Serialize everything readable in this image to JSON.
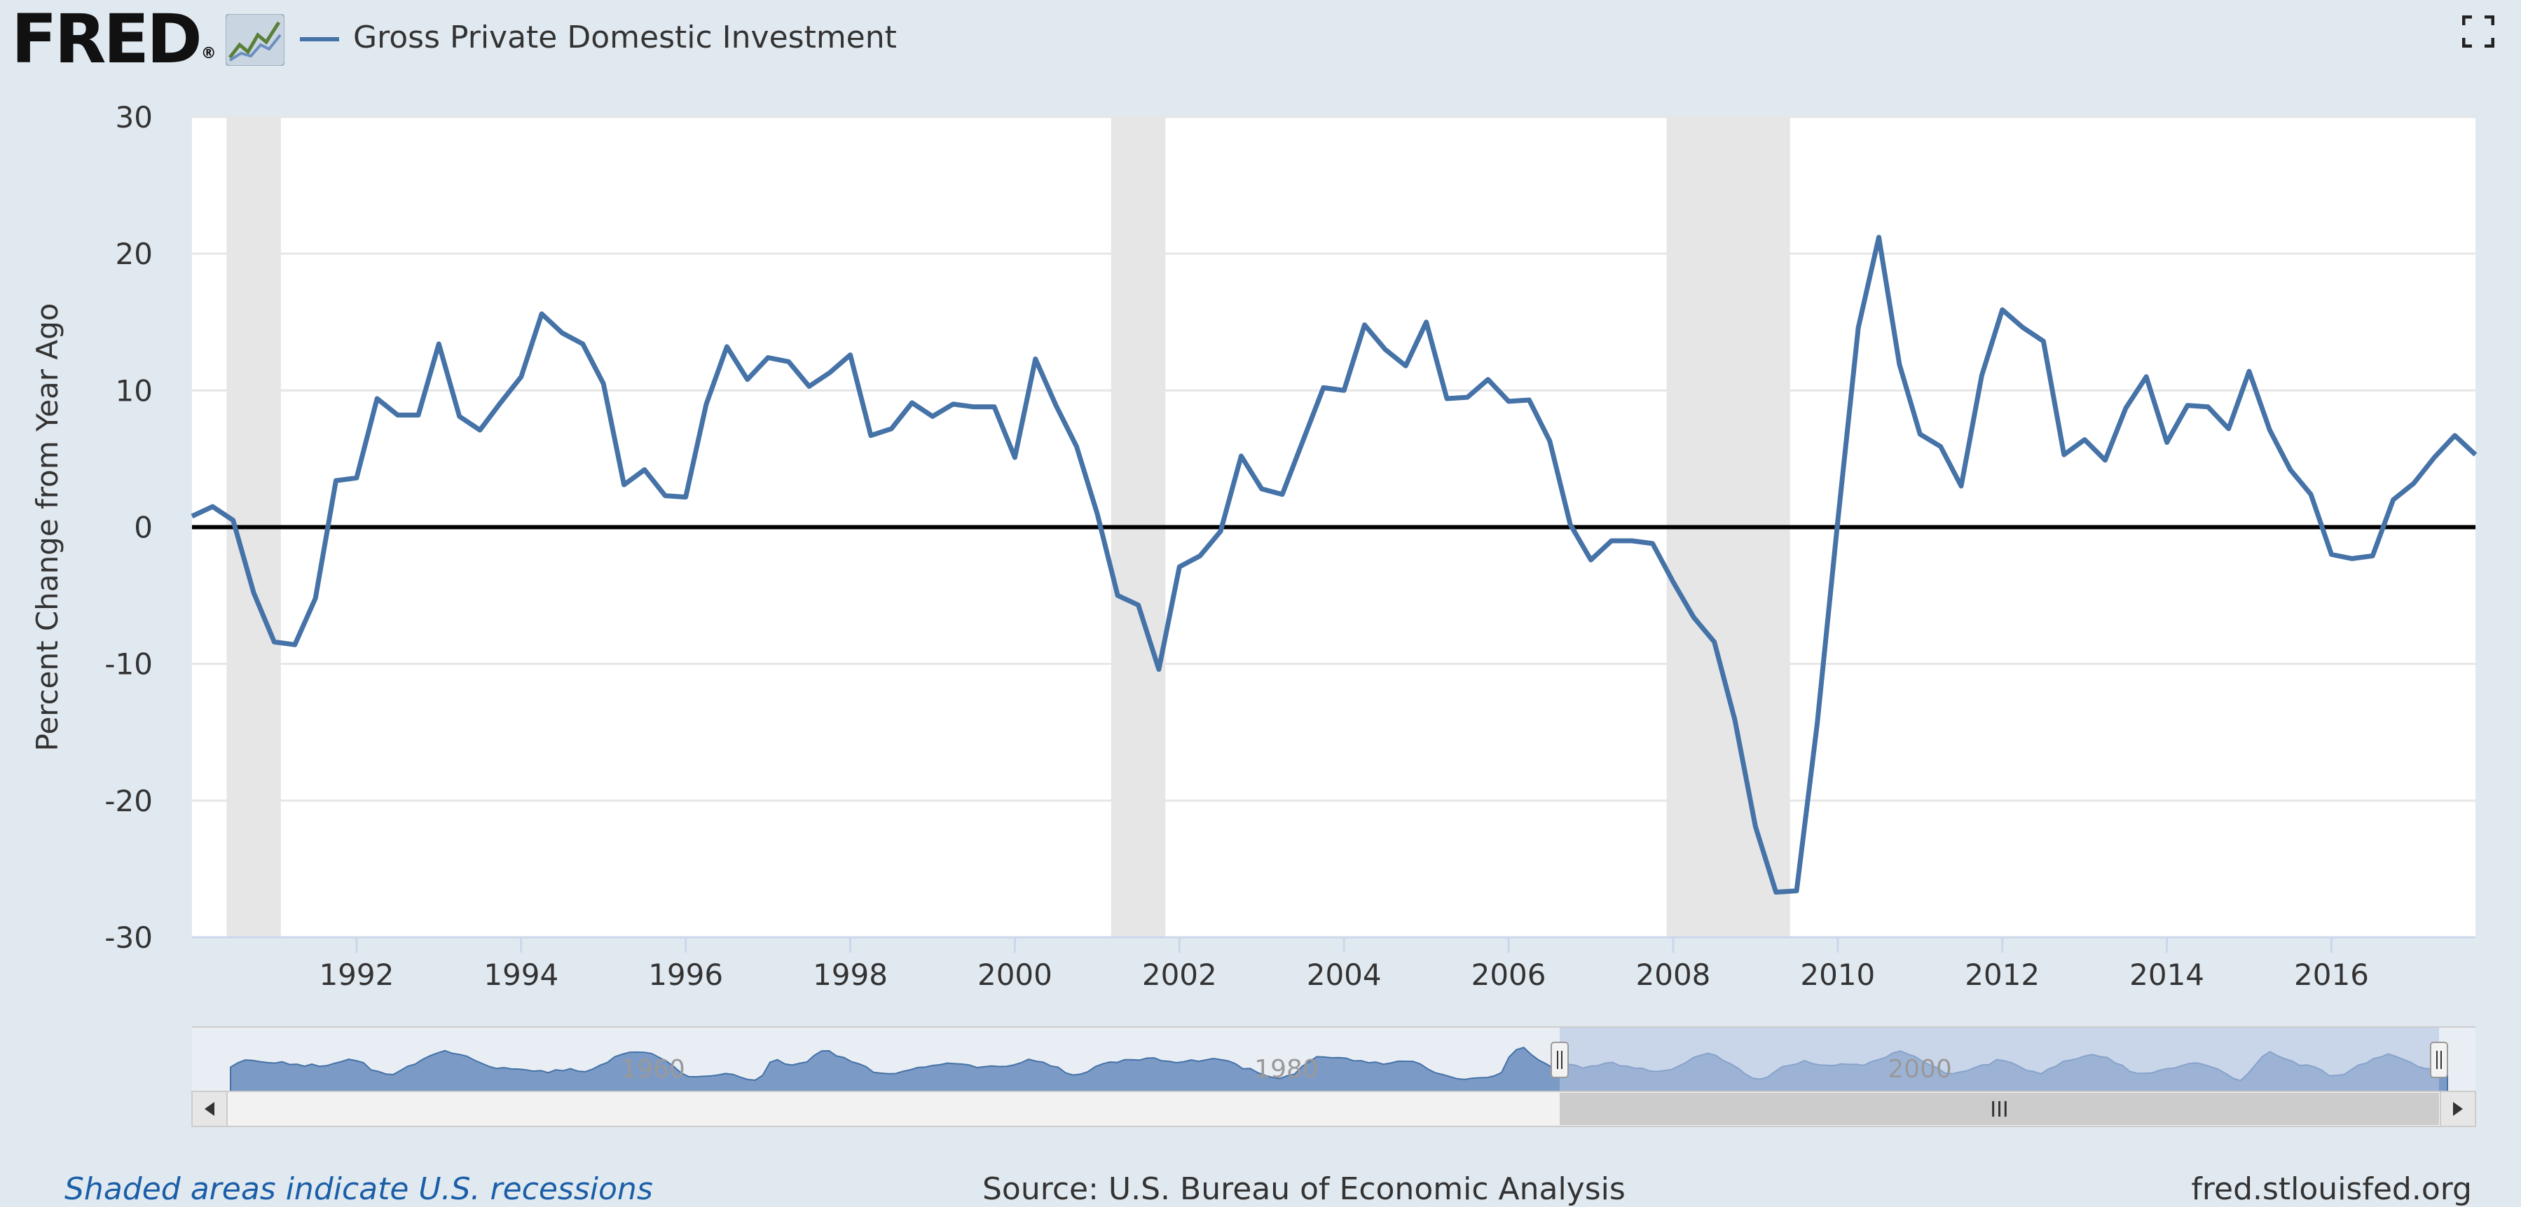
{
  "header": {
    "logo_text": "FRED",
    "logo_reg": "®",
    "mini_icon": "line-chart-icon",
    "series_legend": "Gross Private Domestic Investment",
    "fullscreen_icon": "fullscreen-icon"
  },
  "navigator": {
    "labels": [
      "1960",
      "1980",
      "2000"
    ],
    "grip_label": "III",
    "left_arrow_icon": "arrow-left-icon",
    "right_arrow_icon": "arrow-right-icon"
  },
  "footer": {
    "recession_note": "Shaded areas indicate U.S. recessions",
    "source": "Source: U.S. Bureau of Economic Analysis",
    "site": "fred.stlouisfed.org"
  },
  "colors": {
    "series": "#4572a7",
    "recession": "#e6e6e6",
    "background": "#e1e9f0",
    "zero_line": "#000000",
    "navigator_fill": "#7b9ac6",
    "navigator_selection": "#b4c4e1"
  },
  "chart_data": {
    "type": "line",
    "title": "",
    "xlabel": "",
    "ylabel": "Percent Change from Year Ago",
    "ylim": [
      -30,
      30
    ],
    "xlim": [
      1990.0,
      2017.75
    ],
    "yticks": [
      -30,
      -20,
      -10,
      0,
      10,
      20,
      30
    ],
    "xticks": [
      1992,
      1994,
      1996,
      1998,
      2000,
      2002,
      2004,
      2006,
      2008,
      2010,
      2012,
      2014,
      2016
    ],
    "grid": true,
    "zero_line": true,
    "recessions": [
      [
        1990.42,
        1991.08
      ],
      [
        2001.17,
        2001.83
      ],
      [
        2007.92,
        2009.42
      ]
    ],
    "series": [
      {
        "name": "Gross Private Domestic Investment",
        "x": [
          1990.0,
          1990.25,
          1990.5,
          1990.75,
          1991.0,
          1991.25,
          1991.5,
          1991.75,
          1992.0,
          1992.25,
          1992.5,
          1992.75,
          1993.0,
          1993.25,
          1993.5,
          1993.75,
          1994.0,
          1994.25,
          1994.5,
          1994.75,
          1995.0,
          1995.25,
          1995.5,
          1995.75,
          1996.0,
          1996.25,
          1996.5,
          1996.75,
          1997.0,
          1997.25,
          1997.5,
          1997.75,
          1998.0,
          1998.25,
          1998.5,
          1998.75,
          1999.0,
          1999.25,
          1999.5,
          1999.75,
          2000.0,
          2000.25,
          2000.5,
          2000.75,
          2001.0,
          2001.25,
          2001.5,
          2001.75,
          2002.0,
          2002.25,
          2002.5,
          2002.75,
          2003.0,
          2003.25,
          2003.5,
          2003.75,
          2004.0,
          2004.25,
          2004.5,
          2004.75,
          2005.0,
          2005.25,
          2005.5,
          2005.75,
          2006.0,
          2006.25,
          2006.5,
          2006.75,
          2007.0,
          2007.25,
          2007.5,
          2007.75,
          2008.0,
          2008.25,
          2008.5,
          2008.75,
          2009.0,
          2009.25,
          2009.5,
          2009.75,
          2010.0,
          2010.25,
          2010.5,
          2010.75,
          2011.0,
          2011.25,
          2011.5,
          2011.75,
          2012.0,
          2012.25,
          2012.5,
          2012.75,
          2013.0,
          2013.25,
          2013.5,
          2013.75,
          2014.0,
          2014.25,
          2014.5,
          2014.75,
          2015.0,
          2015.25,
          2015.5,
          2015.75,
          2016.0,
          2016.25,
          2016.5,
          2016.75,
          2017.0,
          2017.25,
          2017.5,
          2017.75
        ],
        "values": [
          0.8,
          1.5,
          0.5,
          -4.8,
          -8.4,
          -8.6,
          -5.2,
          3.4,
          3.6,
          9.4,
          8.2,
          8.2,
          13.4,
          8.1,
          7.1,
          9.1,
          11.0,
          15.6,
          14.2,
          13.4,
          10.5,
          3.1,
          4.2,
          2.3,
          2.2,
          9.0,
          13.2,
          10.8,
          12.4,
          12.1,
          10.3,
          11.3,
          12.6,
          6.7,
          7.2,
          9.1,
          8.1,
          9.0,
          8.8,
          8.8,
          5.1,
          12.3,
          8.9,
          5.9,
          1.0,
          -5.0,
          -5.7,
          -10.4,
          -2.9,
          -2.1,
          -0.3,
          5.2,
          2.8,
          2.4,
          6.3,
          10.2,
          10.0,
          14.8,
          13.0,
          11.8,
          15.0,
          9.4,
          9.5,
          10.8,
          9.2,
          9.3,
          6.3,
          0.2,
          -2.4,
          -1.0,
          -1.0,
          -1.2,
          -4.0,
          -6.6,
          -8.4,
          -14.1,
          -21.9,
          -26.7,
          -26.6,
          -14.4,
          0.4,
          14.6,
          21.2,
          11.9,
          6.8,
          5.9,
          3.0,
          11.1,
          15.9,
          14.6,
          13.6,
          5.3,
          6.4,
          4.9,
          8.7,
          11.0,
          6.2,
          8.9,
          8.8,
          7.2,
          11.4,
          7.1,
          4.2,
          2.4,
          -2.0,
          -2.3,
          -2.1,
          2.0,
          3.2,
          5.1,
          6.7,
          5.3
        ]
      }
    ]
  }
}
